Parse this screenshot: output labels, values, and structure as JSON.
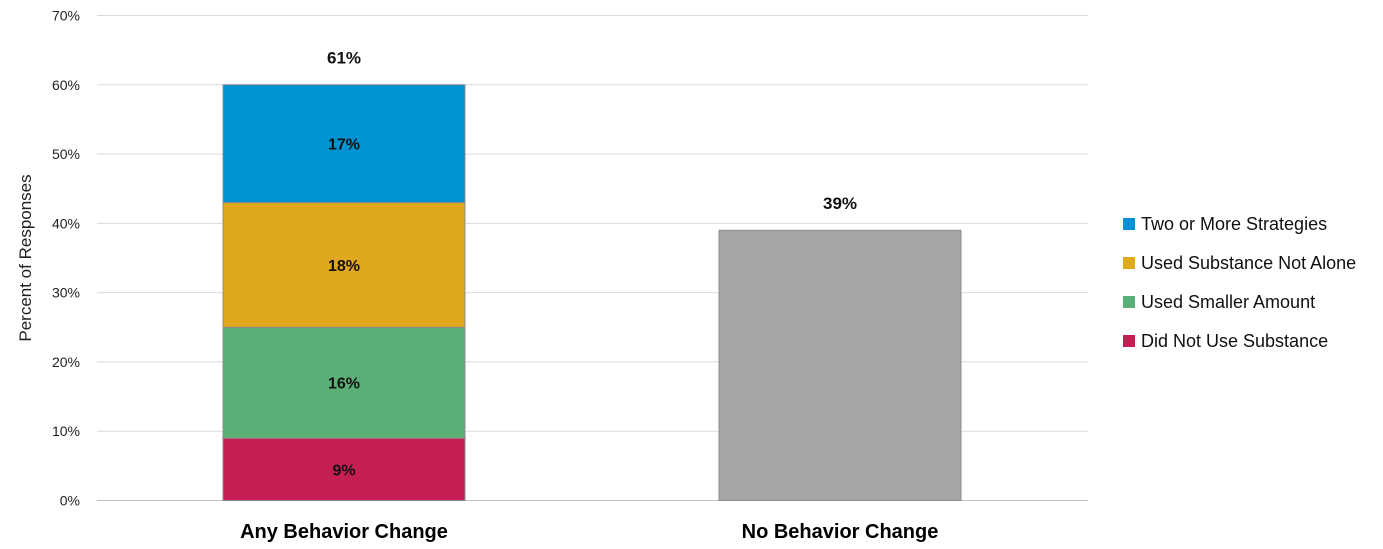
{
  "chart_data": {
    "type": "bar",
    "stacked": true,
    "title": "",
    "xlabel": "",
    "ylabel": "Percent of Responses",
    "ylim": [
      0,
      70
    ],
    "yticks": [
      "0%",
      "10%",
      "20%",
      "30%",
      "40%",
      "50%",
      "60%",
      "70%"
    ],
    "ytick_values": [
      0,
      10,
      20,
      30,
      40,
      50,
      60,
      70
    ],
    "grid": true,
    "legend_position": "right",
    "categories": [
      "Any Behavior Change",
      "No Behavior Change"
    ],
    "series": [
      {
        "name": "Did Not Use Substance",
        "color": "#c41e53",
        "values": [
          9,
          null
        ],
        "labels": [
          "9%",
          ""
        ]
      },
      {
        "name": "Used Smaller Amount",
        "color": "#5aaf77",
        "values": [
          16,
          null
        ],
        "labels": [
          "16%",
          ""
        ]
      },
      {
        "name": "Used Substance Not Alone",
        "color": "#e0a81e",
        "values": [
          18,
          null
        ],
        "labels": [
          "18%",
          ""
        ]
      },
      {
        "name": "Two or More Strategies",
        "color": "#0092d2",
        "values": [
          17,
          null
        ],
        "labels": [
          "17%",
          ""
        ]
      },
      {
        "color": "#a6a6a6",
        "values": [
          null,
          39
        ],
        "labels": [
          "",
          ""
        ],
        "in_legend": false
      }
    ],
    "totals": [
      "61%",
      "39%"
    ],
    "legend": [
      "Two or More Strategies",
      "Used Substance Not Alone",
      "Used Smaller Amount",
      "Did Not Use Substance"
    ]
  }
}
